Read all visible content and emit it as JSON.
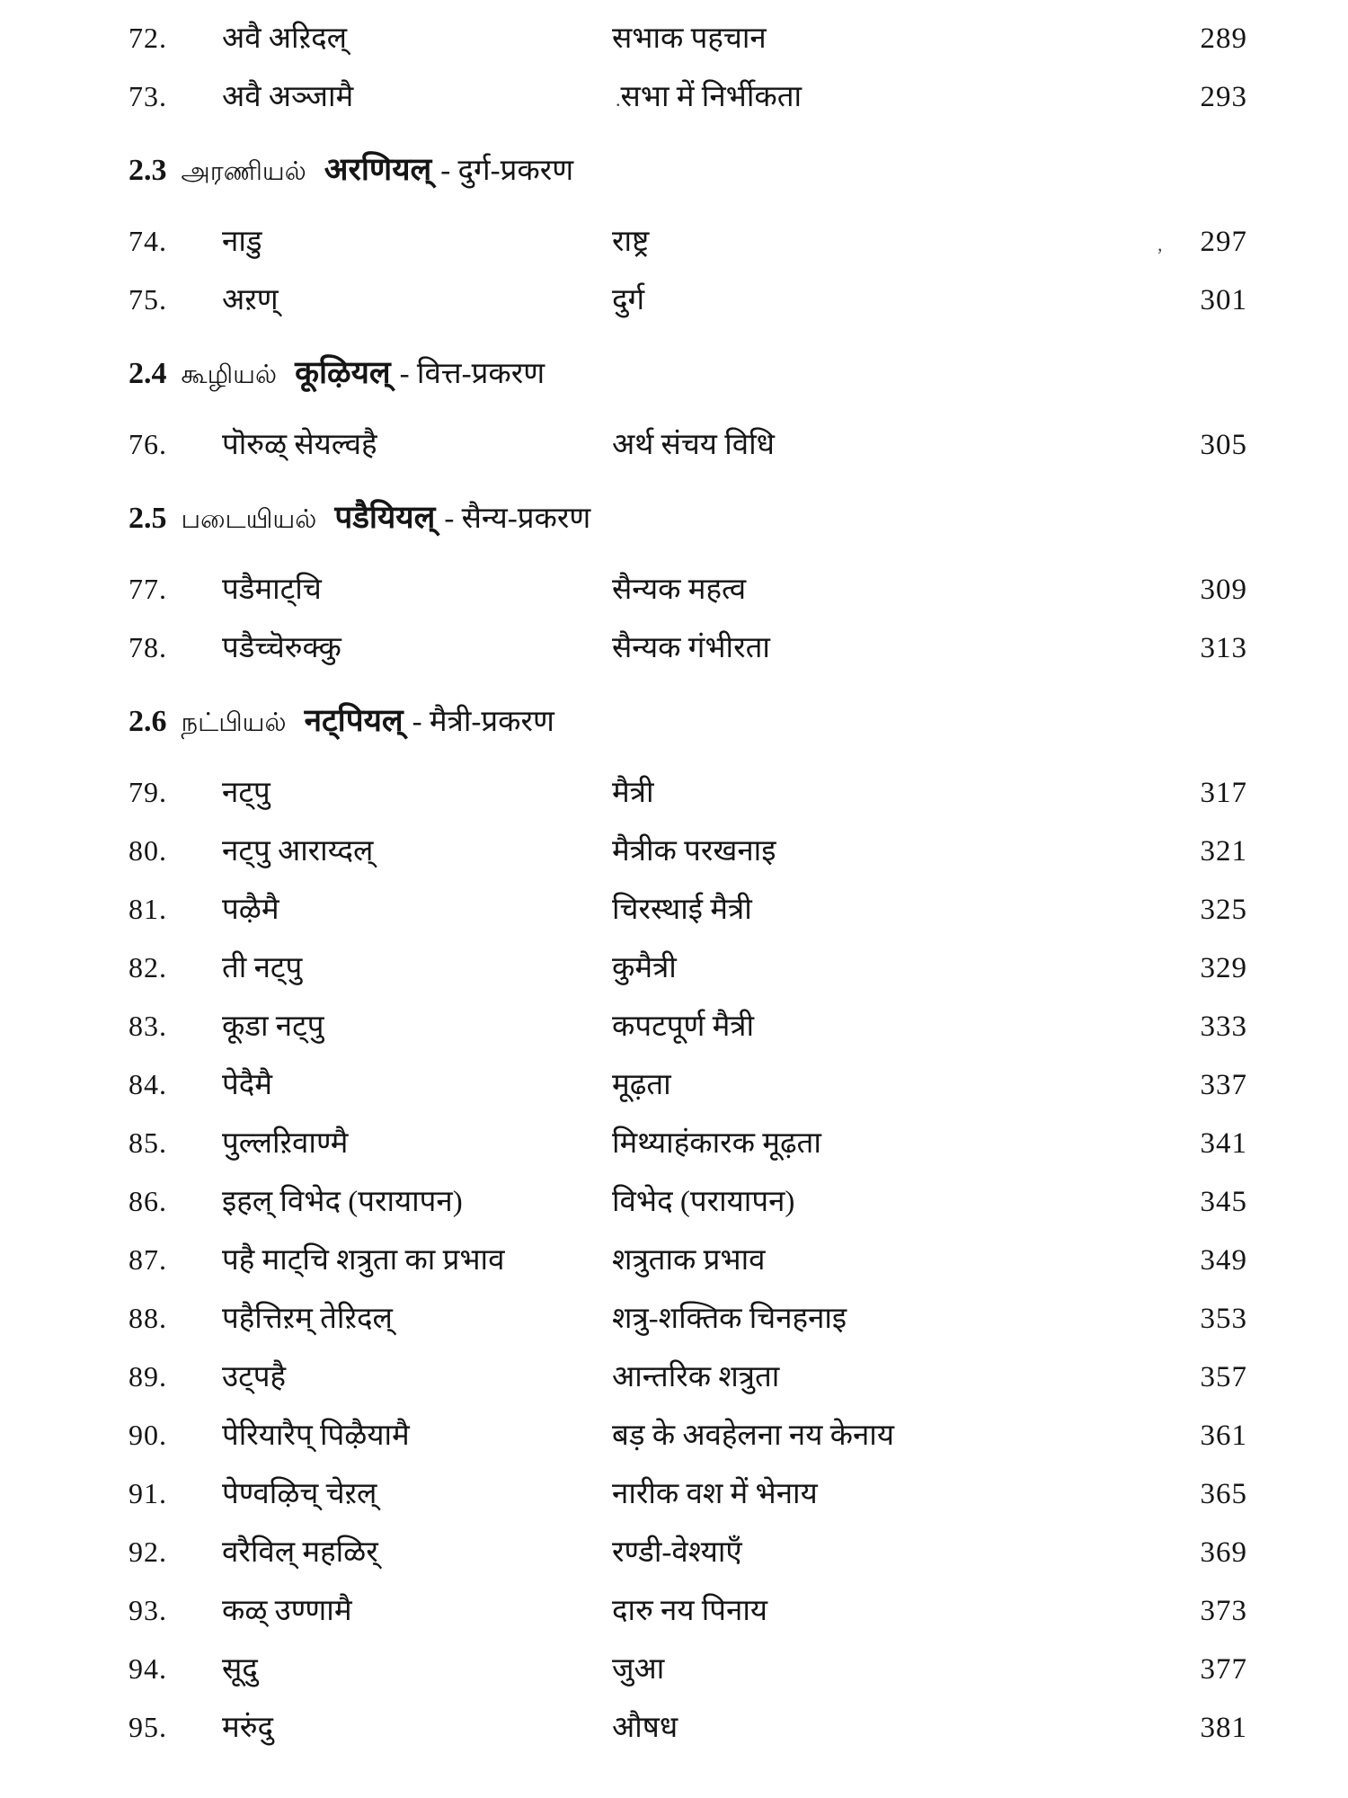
{
  "page": {
    "kind": "book-table-of-contents",
    "background_color": "#ffffff",
    "text_color": "#151515"
  },
  "toc": {
    "items": [
      {
        "type": "entry",
        "num": "72.",
        "title": "अवै अऱिदल्",
        "meaning": "सभाक पहचान",
        "page": "289"
      },
      {
        "type": "entry",
        "num": "73.",
        "title": "अवै अञ्जामै",
        "meaning": "सभा में निर्भीकता",
        "page": "293",
        "artifact_title": "."
      },
      {
        "type": "section",
        "num": "2.3",
        "tamil": "அரணியல்",
        "deva": "अरणियल्",
        "hindi": "- दुर्ग-प्रकरण"
      },
      {
        "type": "entry",
        "num": "74.",
        "title": "नाडु",
        "meaning": "राष्ट्र",
        "page": "297",
        "artifact_page": ","
      },
      {
        "type": "entry",
        "num": "75.",
        "title": "अऱण्",
        "meaning": "दुर्ग",
        "page": "301"
      },
      {
        "type": "section",
        "num": "2.4",
        "tamil": "கூழியல்",
        "deva": "कूऴियल्",
        "hindi": "- वित्त-प्रकरण"
      },
      {
        "type": "entry",
        "num": "76.",
        "title": "पॊरुळ् सेयल्वहै",
        "meaning": "अर्थ संचय विधि",
        "page": "305"
      },
      {
        "type": "section",
        "num": "2.5",
        "tamil": "படையியல்",
        "deva": "पडैयियल्",
        "hindi": "- सैन्य-प्रकरण"
      },
      {
        "type": "entry",
        "num": "77.",
        "title": "पडैमाट्चि",
        "meaning": "सैन्यक महत्व",
        "page": "309"
      },
      {
        "type": "entry",
        "num": "78.",
        "title": "पडैच्चॆरुक्कु",
        "meaning": "सैन्यक गंभीरता",
        "page": "313"
      },
      {
        "type": "section",
        "num": "2.6",
        "tamil": "நட்பியல்",
        "deva": "नट्पियल्",
        "hindi": "- मैत्री-प्रकरण"
      },
      {
        "type": "entry",
        "num": "79.",
        "title": "नट्पु",
        "meaning": "मैत्री",
        "page": "317"
      },
      {
        "type": "entry",
        "num": "80.",
        "title": "नट्पु आराय्दल्",
        "meaning": "मैत्रीक परखनाइ",
        "page": "321"
      },
      {
        "type": "entry",
        "num": "81.",
        "title": "पऴैमै",
        "meaning": "चिरस्थाई मैत्री",
        "page": "325"
      },
      {
        "type": "entry",
        "num": "82.",
        "title": "ती नट्पु",
        "meaning": "कुमैत्री",
        "page": "329"
      },
      {
        "type": "entry",
        "num": "83.",
        "title": "कूडा नट्पु",
        "meaning": "कपटपूर्ण मैत्री",
        "page": "333"
      },
      {
        "type": "entry",
        "num": "84.",
        "title": "पेदैमै",
        "meaning": "मूढ़ता",
        "page": "337"
      },
      {
        "type": "entry",
        "num": "85.",
        "title": "पुल्लऱिवाण्मै",
        "meaning": "मिथ्याहंकारक मूढ़ता",
        "page": "341"
      },
      {
        "type": "entry",
        "num": "86.",
        "title": "इहल् विभेद (परायापन)",
        "meaning": "विभेद (परायापन)",
        "page": "345"
      },
      {
        "type": "entry",
        "num": "87.",
        "title": "पहै माट्चि शत्रुता का प्रभाव",
        "meaning": "शत्रुताक प्रभाव",
        "page": "349"
      },
      {
        "type": "entry",
        "num": "88.",
        "title": "पहैत्तिऱम् तेऱिदल्",
        "meaning": "शत्रु-शक्तिक चिनहनाइ",
        "page": "353"
      },
      {
        "type": "entry",
        "num": "89.",
        "title": "उट्पहै",
        "meaning": "आन्तरिक शत्रुता",
        "page": "357"
      },
      {
        "type": "entry",
        "num": "90.",
        "title": "पेरियारैप् पिऴैयामै",
        "meaning": "बड़ के अवहेलना नय केनाय",
        "page": "361"
      },
      {
        "type": "entry",
        "num": "91.",
        "title": "पेण्वऴिच् चेऱल्",
        "meaning": "नारीक वश में भेनाय",
        "page": "365"
      },
      {
        "type": "entry",
        "num": "92.",
        "title": "वरैविल् महळिर्",
        "meaning": "रण्डी-वेश्याएँ",
        "page": "369"
      },
      {
        "type": "entry",
        "num": "93.",
        "title": "कळ् उण्णामै",
        "meaning": "दारु नय पिनाय",
        "page": "373"
      },
      {
        "type": "entry",
        "num": "94.",
        "title": "सूदु",
        "meaning": "जुआ",
        "page": "377"
      },
      {
        "type": "entry",
        "num": "95.",
        "title": "मरुंदु",
        "meaning": "औषध",
        "page": "381"
      }
    ]
  }
}
